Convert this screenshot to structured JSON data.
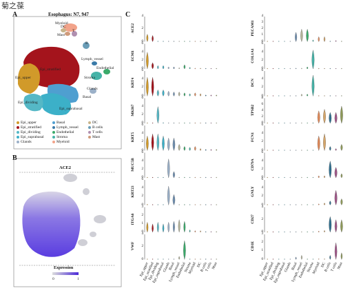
{
  "corner_text": "菊之葆",
  "panelA": {
    "letter": "A",
    "title": "Esophagus: N7, 947",
    "clusters": [
      {
        "name": "Myeloid",
        "color": "#f2a38a"
      },
      {
        "name": "DC",
        "color": "#c8b48a"
      },
      {
        "name": "T",
        "color": "#b08fb0"
      },
      {
        "name": "Mast",
        "color": "#cf9a7a"
      },
      {
        "name": "B",
        "color": "#6a9db7"
      },
      {
        "name": "Lymph_vessel",
        "color": "#3a7aa8"
      },
      {
        "name": "Endothelial",
        "color": "#3aaa6a"
      },
      {
        "name": "Stroma",
        "color": "#46b3a8"
      },
      {
        "name": "Glands",
        "color": "#9bb0c8"
      },
      {
        "name": "Basal",
        "color": "#4f9fd0"
      },
      {
        "name": "Epi_upper",
        "color": "#d19a2a"
      },
      {
        "name": "Epi_stratified",
        "color": "#a4141c"
      },
      {
        "name": "Epi_dividing",
        "color": "#55b8c6"
      },
      {
        "name": "Epi_suprabasal",
        "color": "#3cb0c8"
      }
    ],
    "labels": {
      "myeloid": "Myeloid",
      "dc": "DC",
      "t": "T",
      "mast": "Mast",
      "b": "B",
      "lymph": "Lymph_vessel",
      "endo": "Endothelial",
      "stroma": "Stroma",
      "glands": "Glands",
      "basal": "Basal",
      "epi_upper": "Epi_upper",
      "epi_strat": "Epi_stratified",
      "epi_div": "Epi_dividing",
      "epi_supra": "Epi_suprabasal"
    },
    "legend": [
      {
        "label": "Epi_upper",
        "color": "#d19a2a"
      },
      {
        "label": "Basal",
        "color": "#4f9fd0"
      },
      {
        "label": "DC",
        "color": "#c8b48a"
      },
      {
        "label": "Epi_stratified",
        "color": "#a4141c"
      },
      {
        "label": "Lymph_vessel",
        "color": "#3a7aa8"
      },
      {
        "label": "B cells",
        "color": "#6a9db7"
      },
      {
        "label": "Epi_dividing",
        "color": "#55b8c6"
      },
      {
        "label": "Endothelial",
        "color": "#3aaa6a"
      },
      {
        "label": "T cells",
        "color": "#b08fb0"
      },
      {
        "label": "Epi_suprabasal",
        "color": "#3cb0c8"
      },
      {
        "label": "Stroma",
        "color": "#46b3a8"
      },
      {
        "label": "Mast",
        "color": "#cf9a7a"
      },
      {
        "label": "Glands",
        "color": "#9bb0c8"
      },
      {
        "label": "Myeloid",
        "color": "#f2a38a"
      }
    ]
  },
  "panelB": {
    "letter": "B",
    "title": "ACE2",
    "expression_label": "Expression",
    "scale_min": "0",
    "scale_max": "1",
    "low_color": "#dcdcdc",
    "high_color": "#4b2ad8"
  },
  "panelC": {
    "letter": "C",
    "cell_types_left": [
      "Epi_upper",
      "Epi_stratified",
      "Epi_dividing",
      "Epi_suprabasal",
      "Glands",
      "Basal",
      "Lymph_vessel",
      "Endothelial",
      "Stroma",
      "Myeloid",
      "DC",
      "B cells",
      "T cells",
      "Mast"
    ],
    "cell_types_right": [
      "Epi_upper",
      "Epi_stratified",
      "Epi_dividing",
      "Epi_suprabasal",
      "Glands",
      "Basal",
      "Lymph_vessel",
      "Endothelial",
      "Stroma",
      "Myeloid",
      "DC",
      "B cells",
      "T cells",
      "Mast"
    ],
    "left_genes": [
      {
        "gene": "ACE2",
        "ymax": "4",
        "ticks": [
          "0",
          "2",
          "4"
        ]
      },
      {
        "gene": "ECM1",
        "ymax": "6",
        "ticks": [
          "0",
          "2",
          "4",
          "6"
        ]
      },
      {
        "gene": "KRT4",
        "ymax": "6",
        "ticks": [
          "0",
          "2",
          "4",
          "6"
        ]
      },
      {
        "gene": "MKI67",
        "ymax": "6",
        "ticks": [
          "0",
          "2",
          "4",
          "6"
        ]
      },
      {
        "gene": "KRT5",
        "ymax": "6",
        "ticks": [
          "0",
          "2",
          "4",
          "6"
        ]
      },
      {
        "gene": "MUC5B",
        "ymax": "6",
        "ticks": [
          "0",
          "2",
          "4",
          "6"
        ]
      },
      {
        "gene": "KRT23",
        "ymax": "6",
        "ticks": [
          "0",
          "2",
          "4",
          "6"
        ]
      },
      {
        "gene": "ITGA6",
        "ymax": "3",
        "ticks": [
          "0",
          "1",
          "2",
          "3"
        ]
      },
      {
        "gene": "VWF",
        "ymax": "4",
        "ticks": [
          "0",
          "2",
          "4"
        ]
      }
    ],
    "right_genes": [
      {
        "gene": "PECAM1",
        "ymax": "4",
        "ticks": [
          "0",
          "1",
          "2",
          "3",
          "4"
        ]
      },
      {
        "gene": "COL1A1",
        "ymax": "6",
        "ticks": [
          "0",
          "2",
          "4",
          "6"
        ]
      },
      {
        "gene": "DCN",
        "ymax": "6",
        "ticks": [
          "0",
          "2",
          "4",
          "6"
        ]
      },
      {
        "gene": "TPSB2",
        "ymax": "8",
        "ticks": [
          "0",
          "2",
          "4",
          "6",
          "8"
        ]
      },
      {
        "gene": "FCN1",
        "ymax": "6",
        "ticks": [
          "0",
          "2",
          "4",
          "6"
        ]
      },
      {
        "gene": "CD79A",
        "ymax": "6",
        "ticks": [
          "0",
          "2",
          "4",
          "6"
        ]
      },
      {
        "gene": "GNLY",
        "ymax": "6",
        "ticks": [
          "0",
          "2",
          "4",
          "6"
        ]
      },
      {
        "gene": "CD27",
        "ymax": "4",
        "ticks": [
          "0",
          "2",
          "4"
        ]
      },
      {
        "gene": "CD3E",
        "ymax": "3",
        "ticks": [
          "0",
          "1",
          "2",
          "3"
        ]
      }
    ]
  },
  "chart_data": {
    "type": "violin",
    "categories": [
      "Epi_upper",
      "Epi_stratified",
      "Epi_dividing",
      "Epi_suprabasal",
      "Glands",
      "Basal",
      "Lymph_vessel",
      "Endothelial",
      "Stroma",
      "Myeloid",
      "DC",
      "B cells",
      "T cells",
      "Mast"
    ],
    "series": [
      {
        "name": "ACE2",
        "values": [
          1.2,
          1.0,
          0.1,
          0.1,
          0.1,
          0.1,
          0.0,
          0.0,
          0.0,
          0.0,
          0.0,
          0.0,
          0.0,
          0.0
        ]
      },
      {
        "name": "ECM1",
        "values": [
          4.0,
          1.5,
          0.8,
          0.8,
          0.5,
          0.5,
          0.3,
          1.0,
          0.4,
          0.2,
          0.2,
          0.1,
          0.1,
          0.1
        ]
      },
      {
        "name": "KRT4",
        "values": [
          4.5,
          4.5,
          1.5,
          1.5,
          1.2,
          1.0,
          1.0,
          0.8,
          0.6,
          0.8,
          0.6,
          0.3,
          0.3,
          0.3
        ]
      },
      {
        "name": "MKI67",
        "values": [
          0.1,
          0.1,
          4.0,
          0.2,
          0.1,
          0.1,
          0.0,
          0.0,
          0.0,
          0.1,
          0.0,
          0.1,
          0.1,
          0.0
        ]
      },
      {
        "name": "KRT5",
        "values": [
          3.5,
          4.0,
          4.0,
          3.5,
          3.0,
          3.0,
          1.5,
          1.0,
          0.8,
          1.0,
          0.5,
          0.3,
          0.3,
          0.3
        ]
      },
      {
        "name": "MUC5B",
        "values": [
          0.1,
          0.1,
          0.1,
          0.1,
          4.5,
          1.5,
          0.1,
          0.1,
          0.0,
          0.1,
          0.0,
          0.0,
          0.0,
          0.0
        ]
      },
      {
        "name": "KRT23",
        "values": [
          0.2,
          0.1,
          0.1,
          0.1,
          4.5,
          2.5,
          0.1,
          0.1,
          0.0,
          0.0,
          0.0,
          0.0,
          0.0,
          0.0
        ]
      },
      {
        "name": "ITGA6",
        "values": [
          1.2,
          1.0,
          1.2,
          1.0,
          1.2,
          1.3,
          1.5,
          1.3,
          0.3,
          0.2,
          0.2,
          0.1,
          0.1,
          0.1
        ]
      },
      {
        "name": "VWF",
        "values": [
          0.0,
          0.0,
          0.0,
          0.0,
          0.0,
          0.0,
          0.5,
          3.0,
          0.1,
          0.0,
          0.0,
          0.0,
          0.0,
          0.0
        ]
      },
      {
        "name": "PECAM1",
        "values": [
          0.0,
          0.0,
          0.0,
          0.0,
          0.0,
          1.5,
          2.0,
          2.0,
          0.3,
          0.8,
          0.8,
          0.1,
          0.2,
          0.1
        ]
      },
      {
        "name": "COL1A1",
        "values": [
          0.0,
          0.0,
          0.0,
          0.0,
          0.0,
          0.2,
          0.2,
          0.5,
          4.5,
          0.1,
          0.1,
          0.0,
          0.0,
          0.0
        ]
      },
      {
        "name": "DCN",
        "values": [
          0.0,
          0.0,
          0.0,
          0.0,
          0.0,
          0.1,
          0.5,
          0.5,
          5.0,
          0.1,
          0.1,
          0.0,
          0.0,
          0.1
        ]
      },
      {
        "name": "TPSB2",
        "values": [
          0.0,
          0.0,
          0.0,
          0.0,
          0.0,
          0.0,
          0.0,
          0.0,
          0.2,
          4.0,
          4.5,
          3.5,
          3.5,
          5.5
        ]
      },
      {
        "name": "FCN1",
        "values": [
          0.0,
          0.0,
          0.0,
          0.0,
          0.0,
          0.0,
          0.0,
          0.0,
          0.0,
          3.5,
          4.0,
          1.0,
          0.5,
          1.5
        ]
      },
      {
        "name": "CD79A",
        "values": [
          0.0,
          0.0,
          0.0,
          0.0,
          0.0,
          0.0,
          0.0,
          0.0,
          0.0,
          0.5,
          0.5,
          4.0,
          2.5,
          1.0
        ]
      },
      {
        "name": "GNLY",
        "values": [
          0.0,
          0.0,
          0.0,
          0.0,
          0.0,
          0.0,
          0.0,
          0.0,
          0.0,
          0.3,
          0.5,
          1.0,
          3.5,
          1.5
        ]
      },
      {
        "name": "CD27",
        "values": [
          0.0,
          0.0,
          0.0,
          0.0,
          0.0,
          0.0,
          0.0,
          0.0,
          0.0,
          0.2,
          0.3,
          2.5,
          2.0,
          2.0
        ]
      },
      {
        "name": "CD3E",
        "values": [
          0.0,
          0.0,
          0.0,
          0.0,
          0.0,
          0.3,
          0.5,
          0.0,
          0.0,
          0.1,
          0.1,
          0.5,
          2.0,
          0.8
        ]
      }
    ]
  }
}
